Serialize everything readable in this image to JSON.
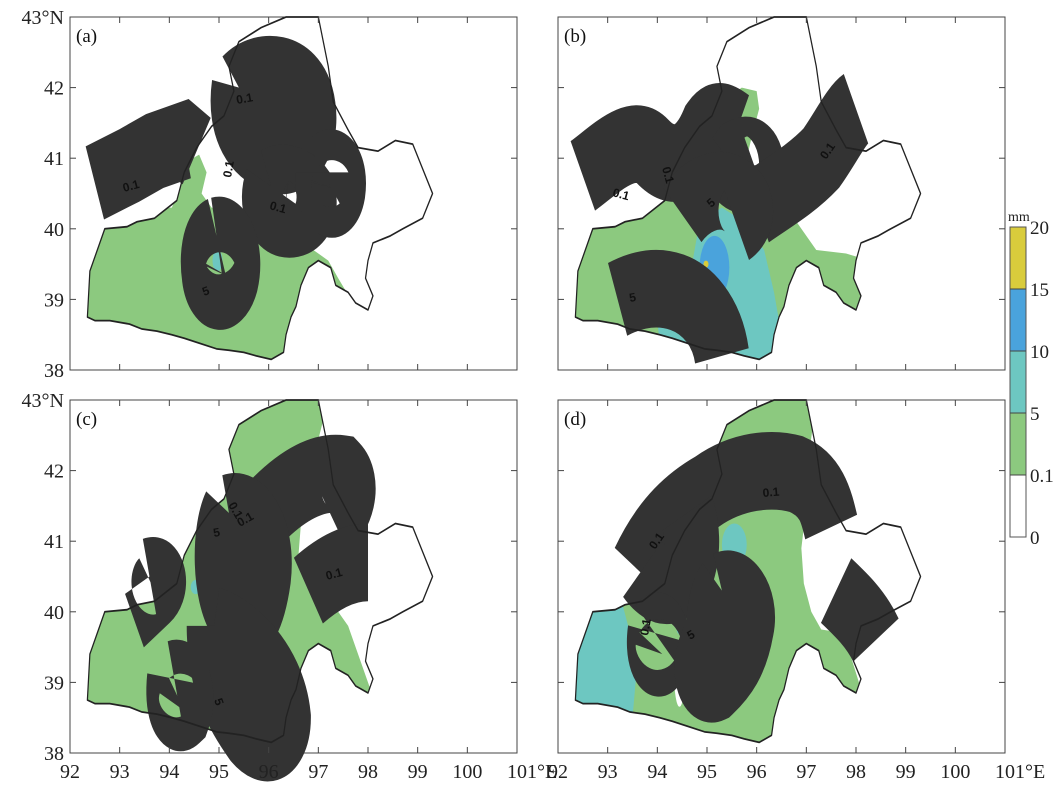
{
  "figure": {
    "panels": [
      {
        "id": "a",
        "label": "(a)"
      },
      {
        "id": "b",
        "label": "(b)"
      },
      {
        "id": "c",
        "label": "(c)"
      },
      {
        "id": "d",
        "label": "(d)"
      }
    ],
    "lat_ticks_top": [
      "43°N",
      "42",
      "41",
      "40",
      "39",
      "38"
    ],
    "lat_ticks_bottom": [
      "43°N",
      "42",
      "41",
      "40",
      "39",
      "38"
    ],
    "lon_ticks_left": [
      "92",
      "93",
      "94",
      "95",
      "96",
      "97",
      "98",
      "99",
      "100",
      "101°E"
    ],
    "lon_ticks_right": [
      "92",
      "93",
      "94",
      "95",
      "96",
      "97",
      "98",
      "99",
      "100",
      "101°E"
    ],
    "contour_labels": {
      "a": [
        "0.1",
        "0.1",
        "0.1",
        "0.1",
        "5"
      ],
      "b": [
        "0.1",
        "0.1",
        "0.1",
        "5",
        "5"
      ],
      "c": [
        "0.1",
        "0.1",
        "0.1",
        "5",
        "5"
      ],
      "d": [
        "0.1",
        "0.1",
        "0.1",
        "5"
      ]
    },
    "colorbar": {
      "unit": "mm",
      "labels": [
        "20",
        "15",
        "10",
        "5",
        "0.1",
        "0"
      ],
      "colors": [
        "#d9cc3c",
        "#4aa3dc",
        "#6dc7c1",
        "#8cc97f",
        "#ffffff"
      ]
    },
    "fill_colors": {
      "light": "#8cc97f",
      "medium": "#6dc7c1",
      "heavy": "#4aa3dc",
      "extreme": "#d9cc3c"
    }
  }
}
